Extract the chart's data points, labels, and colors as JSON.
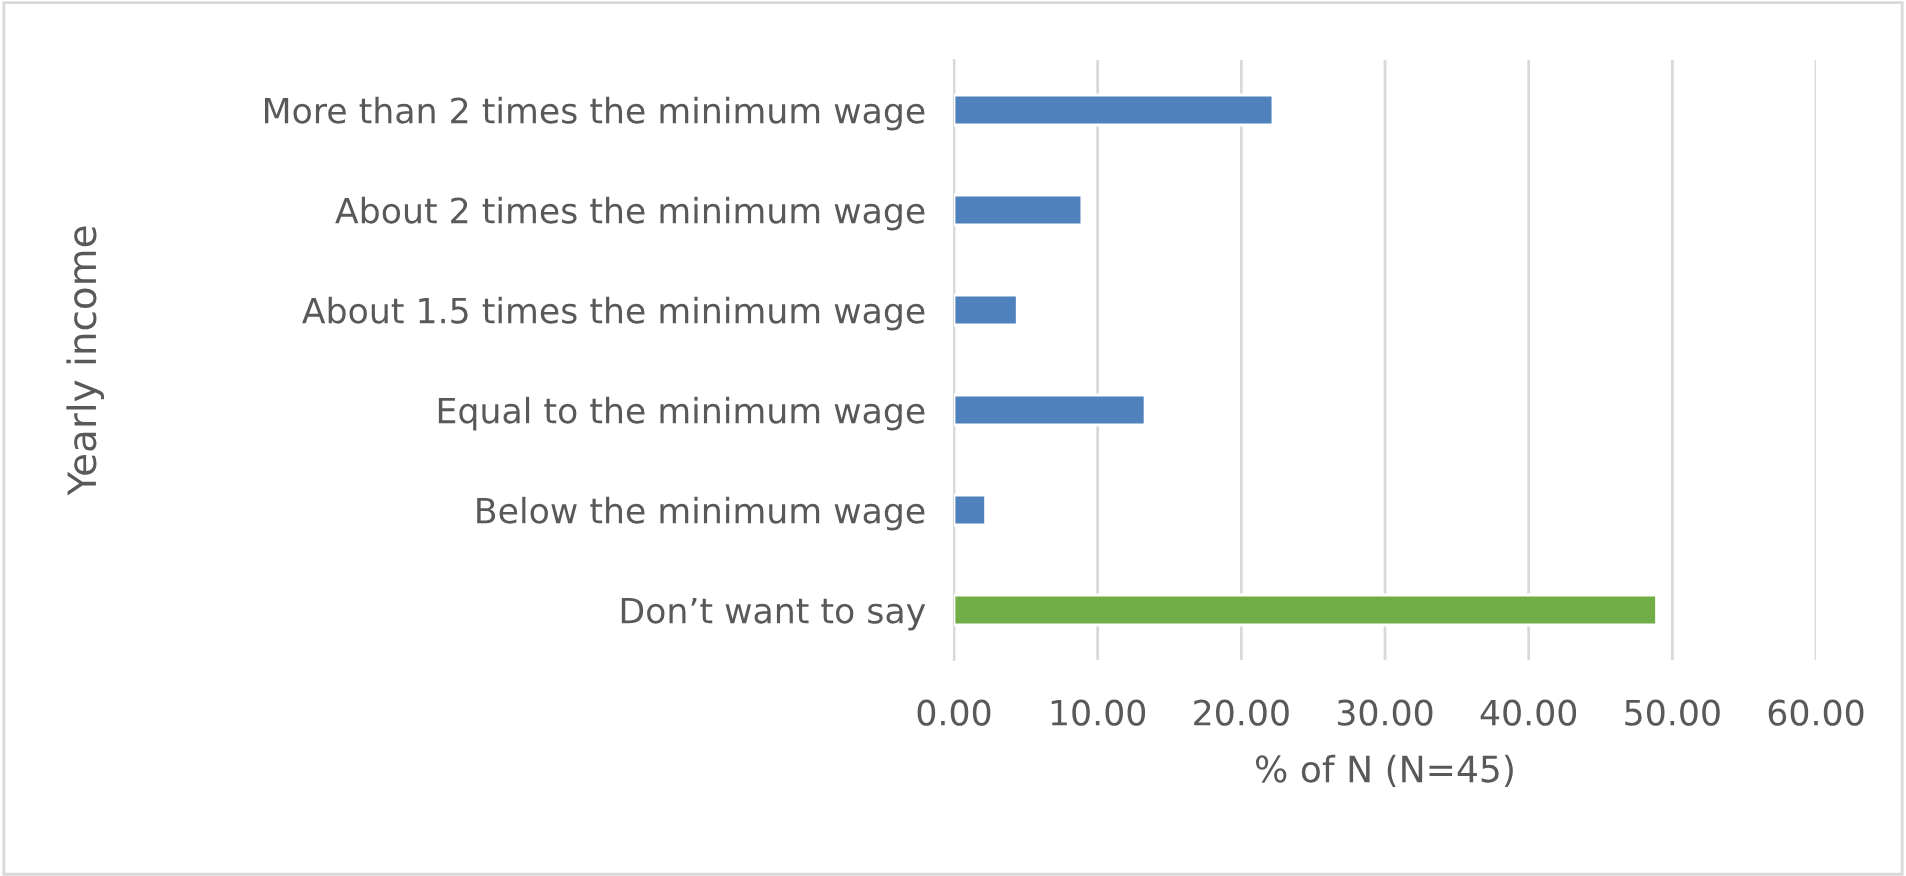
{
  "chart_data": {
    "type": "bar",
    "orientation": "horizontal",
    "xlabel": "% of N (N=45)",
    "ylabel": "Yearly income",
    "categories": [
      "More than 2 times the minimum wage",
      "About 2 times the minimum wage",
      "About 1.5 times the minimum wage",
      "Equal to the minimum wage",
      "Below the minimum wage",
      "Don’t want to say"
    ],
    "values": [
      22.2,
      8.9,
      4.4,
      13.3,
      2.2,
      48.9
    ],
    "colors": [
      "#4f81bd",
      "#4f81bd",
      "#4f81bd",
      "#4f81bd",
      "#4f81bd",
      "#70ad47"
    ],
    "xlim": [
      0,
      60
    ],
    "xticks": [
      {
        "value": 0,
        "label": "0.00"
      },
      {
        "value": 10,
        "label": "10.00"
      },
      {
        "value": 20,
        "label": "20.00"
      },
      {
        "value": 30,
        "label": "30.00"
      },
      {
        "value": 40,
        "label": "40.00"
      },
      {
        "value": 50,
        "label": "50.00"
      },
      {
        "value": 60,
        "label": "60.00"
      }
    ],
    "grid": "x"
  }
}
